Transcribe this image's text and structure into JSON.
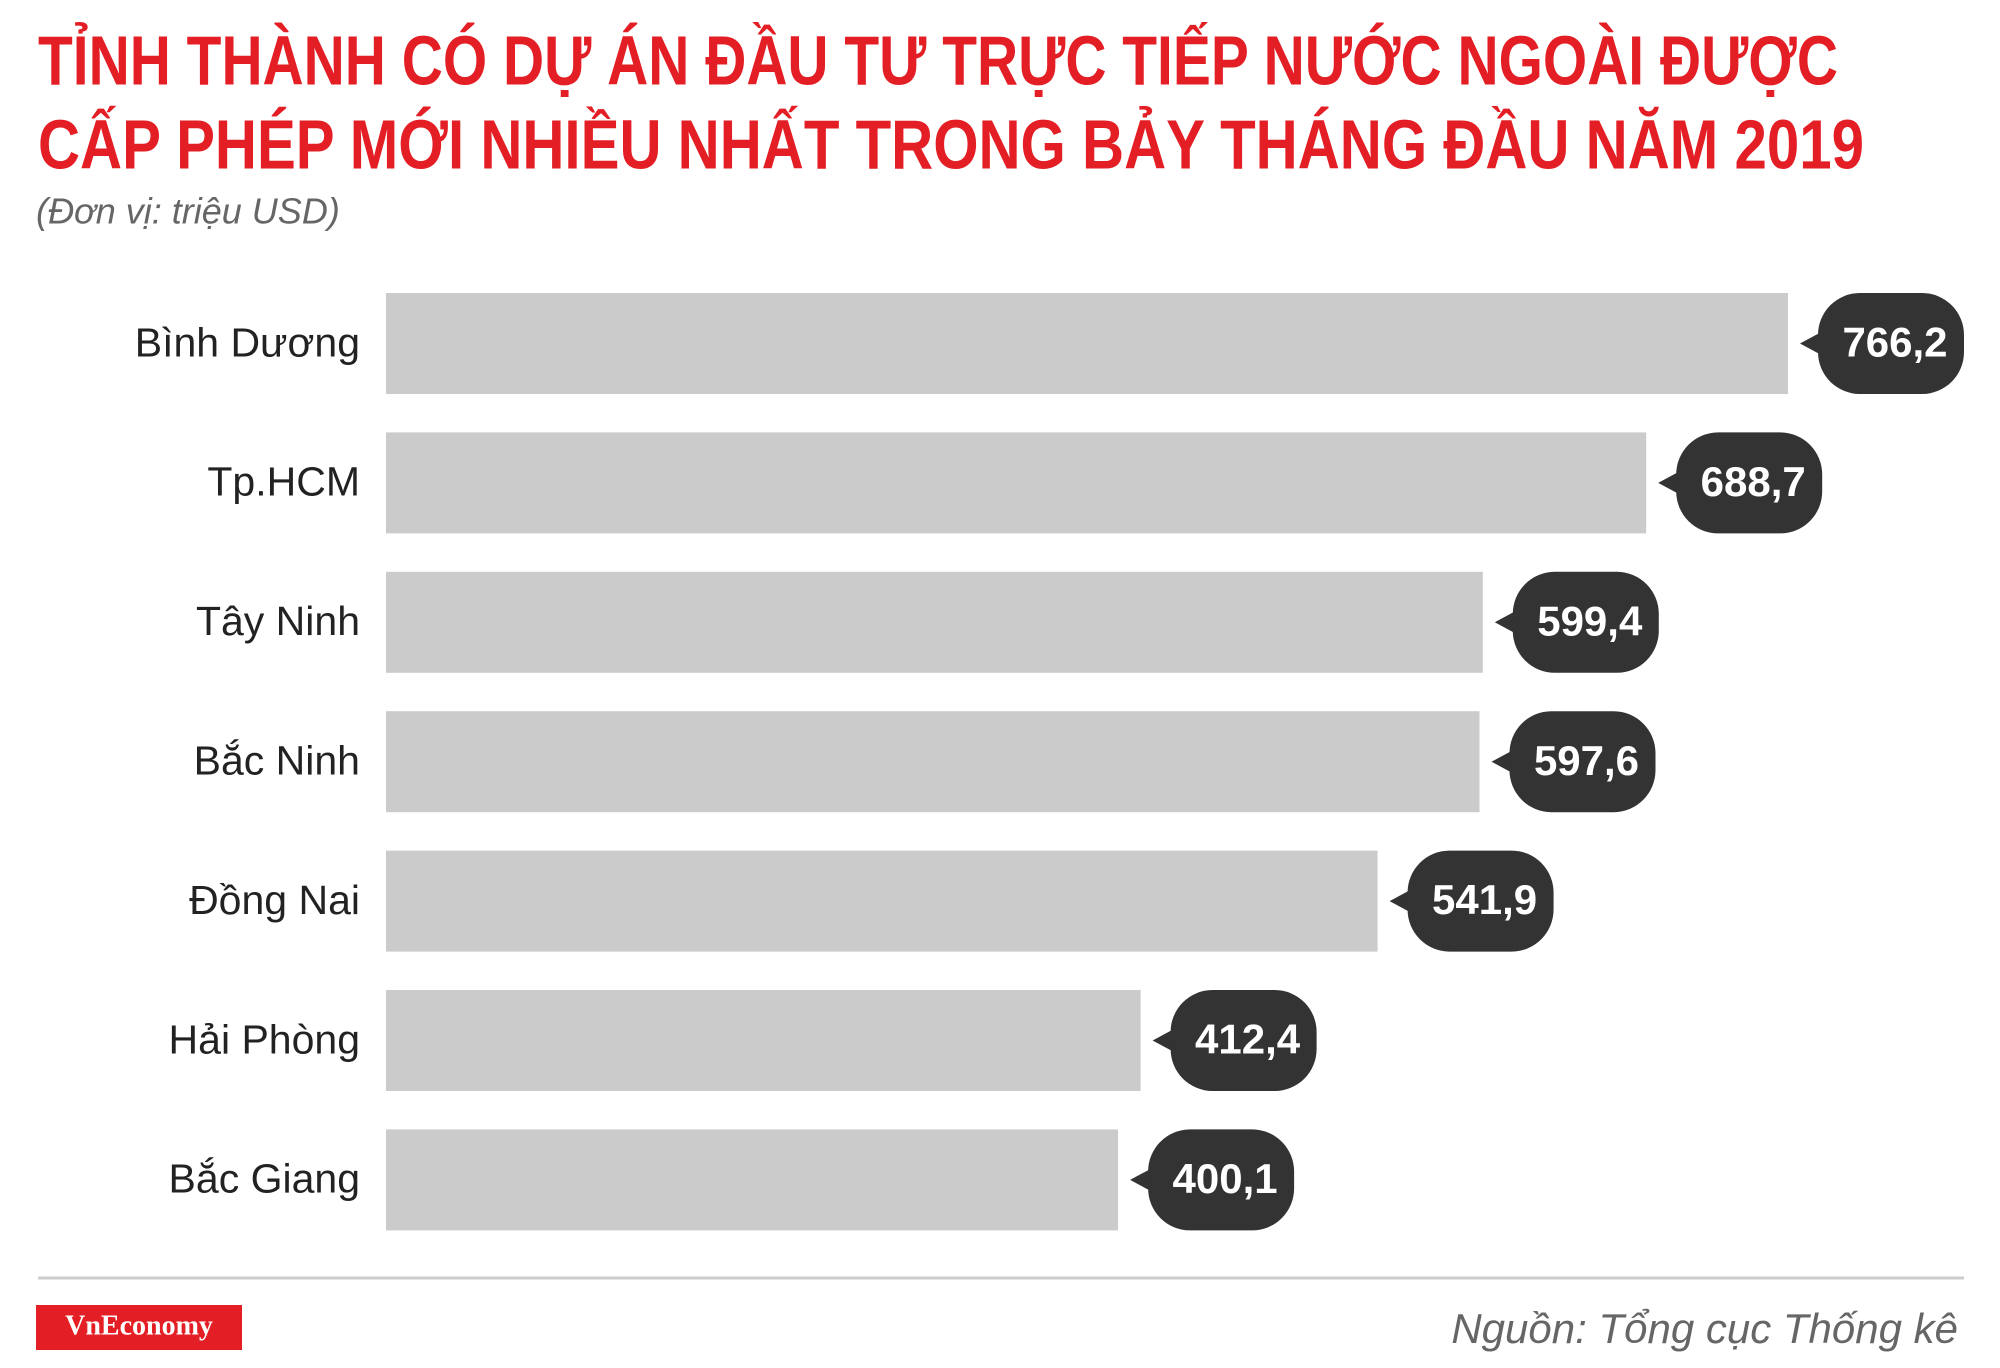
{
  "chart_data": {
    "type": "bar",
    "orientation": "horizontal",
    "title": [
      "TỈNH THÀNH CÓ DỰ ÁN ĐẦU TƯ TRỰC TIẾP NƯỚC NGOÀI ĐƯỢC",
      "CẤP PHÉP MỚI NHIỀU NHẤT TRONG BẢY THÁNG ĐẦU NĂM 2019"
    ],
    "subtitle": "(Đơn vị: triệu USD)",
    "categories": [
      "Bình Dương",
      "Tp.HCM",
      "Tây Ninh",
      "Bắc Ninh",
      "Đồng Nai",
      "Hải Phòng",
      "Bắc Giang"
    ],
    "values": [
      766.2,
      688.7,
      599.4,
      597.6,
      541.9,
      412.4,
      400.1
    ],
    "value_labels": [
      "766,2",
      "688,7",
      "599,4",
      "597,6",
      "541,9",
      "412,4",
      "400,1"
    ],
    "color": "#cccbcb",
    "label_color": "#333333",
    "source": "Nguồn: Tổng cục Thống kê",
    "logo": "VnEconomy"
  }
}
